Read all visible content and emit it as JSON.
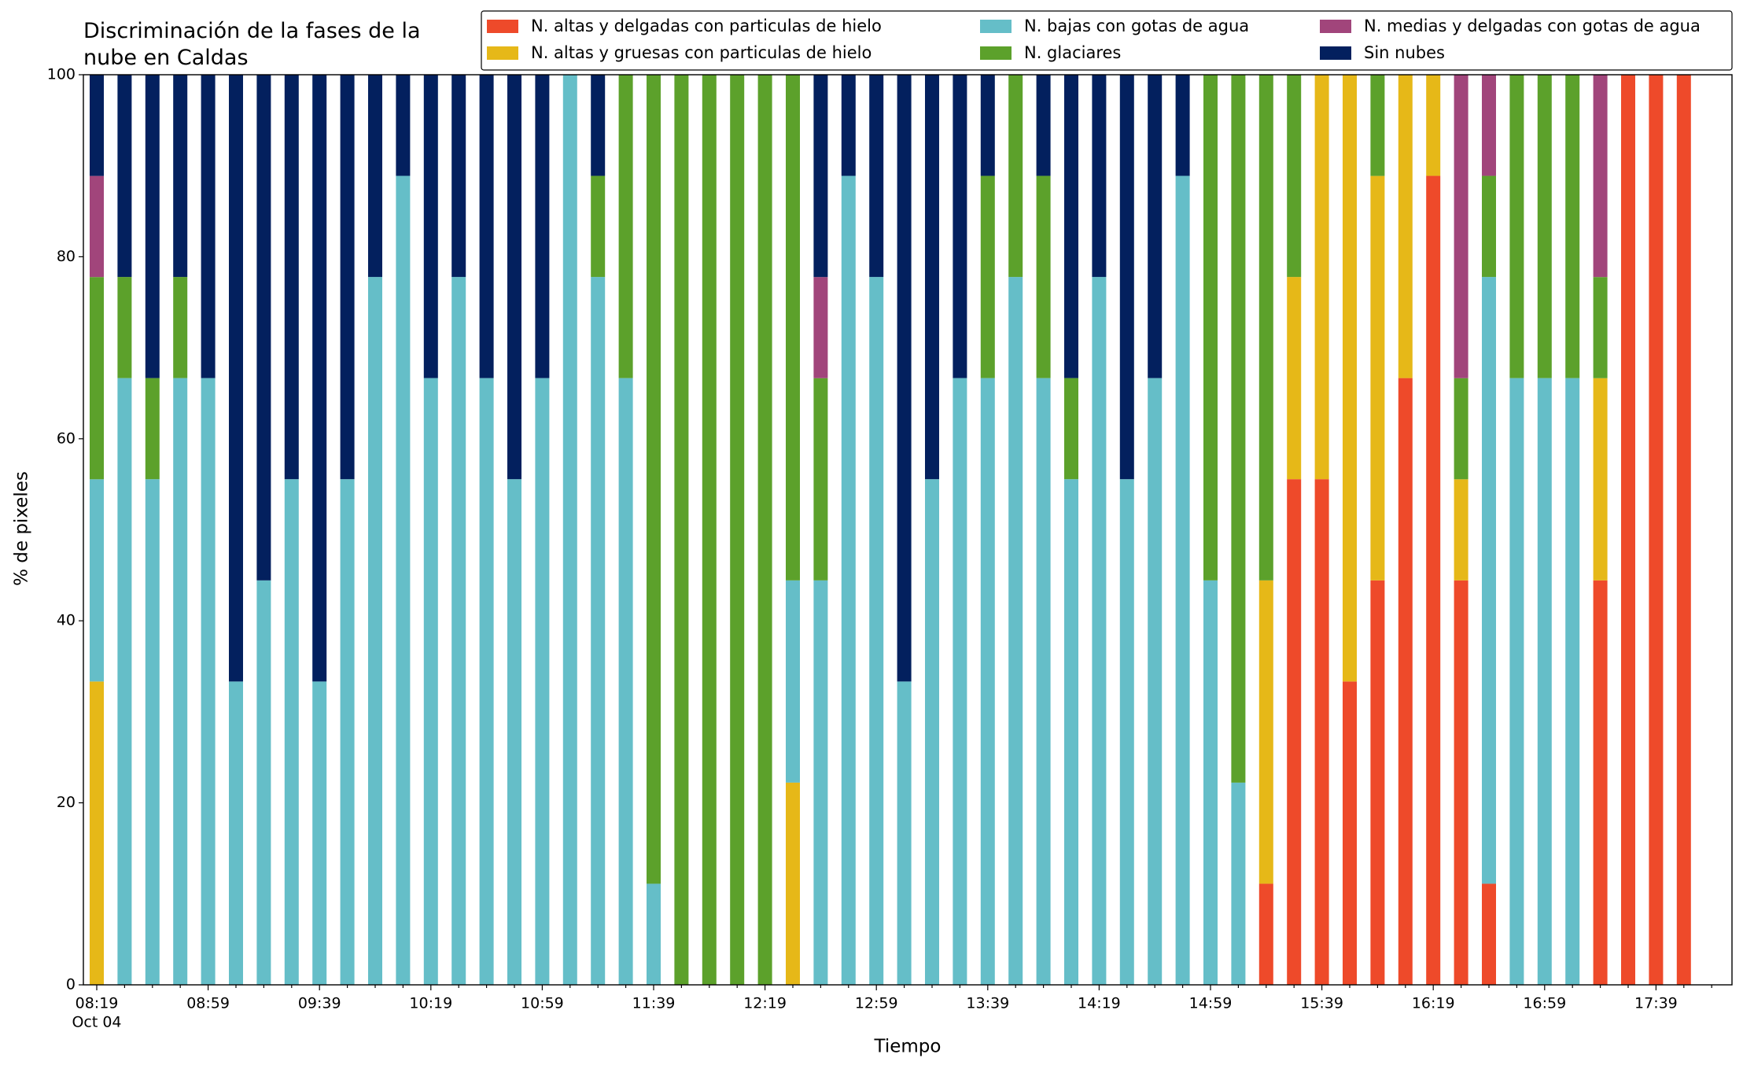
{
  "chart_data": {
    "type": "stacked_bar",
    "title": "Discriminación de la fases de la\nnube en Caldas",
    "xlabel": "Tiempo",
    "ylabel": "% de pixeles",
    "x_sublabel": "Oct 04",
    "categories": [
      "08:19",
      null,
      null,
      null,
      "08:59",
      null,
      null,
      null,
      "09:39",
      null,
      null,
      null,
      "10:19",
      null,
      null,
      null,
      "10:59",
      null,
      null,
      null,
      "11:39",
      null,
      null,
      null,
      "12:19",
      null,
      null,
      null,
      "12:59",
      null,
      null,
      null,
      "13:39",
      null,
      null,
      null,
      "14:19",
      null,
      null,
      null,
      "14:59",
      null,
      null,
      null,
      "15:39",
      null,
      null,
      null,
      "16:19",
      null,
      null,
      null,
      "16:59",
      null,
      null,
      null,
      "17:39",
      null
    ],
    "ylim": [
      0,
      100
    ],
    "yticks": [
      0,
      20,
      40,
      60,
      80,
      100
    ],
    "grid": false,
    "legend": "upper right",
    "series": [
      {
        "name": "N. altas y delgadas con particulas de hielo",
        "color": "#ee4a2a",
        "values": [
          0,
          0,
          0,
          0,
          0,
          0,
          0,
          0,
          0,
          0,
          0,
          0,
          0,
          0,
          0,
          0,
          0,
          0,
          0,
          0,
          0,
          0,
          0,
          0,
          0,
          0,
          0,
          0,
          0,
          0,
          0,
          0,
          0,
          0,
          0,
          0,
          0,
          0,
          0,
          0,
          0,
          0,
          11.11,
          55.56,
          55.56,
          33.33,
          44.44,
          66.67,
          88.89,
          44.44,
          11.11,
          0,
          0,
          0,
          44.44,
          100,
          100,
          100
        ]
      },
      {
        "name": "N. altas y gruesas con particulas de hielo",
        "color": "#e6b818",
        "values": [
          33.33,
          0,
          0,
          0,
          0,
          0,
          0,
          0,
          0,
          0,
          0,
          0,
          0,
          0,
          0,
          0,
          0,
          0,
          0,
          0,
          0,
          0,
          0,
          0,
          0,
          22.22,
          0,
          0,
          0,
          0,
          0,
          0,
          0,
          0,
          0,
          0,
          0,
          0,
          0,
          0,
          0,
          0,
          33.33,
          22.22,
          44.44,
          66.67,
          44.44,
          33.33,
          11.11,
          11.11,
          0,
          0,
          0,
          0,
          22.22,
          0,
          0,
          0
        ]
      },
      {
        "name": "N. bajas con gotas de agua",
        "color": "#65bec8",
        "values": [
          22.22,
          66.67,
          55.56,
          66.67,
          66.67,
          33.33,
          44.44,
          55.56,
          33.33,
          55.56,
          77.78,
          88.89,
          66.67,
          77.78,
          66.67,
          55.56,
          66.67,
          100,
          77.78,
          66.67,
          11.11,
          0,
          0,
          0,
          0,
          22.22,
          44.44,
          88.89,
          77.78,
          33.33,
          55.56,
          66.67,
          66.67,
          77.78,
          66.67,
          55.56,
          77.78,
          55.56,
          66.67,
          88.89,
          44.44,
          22.22,
          0,
          0,
          0,
          0,
          0,
          0,
          0,
          0,
          66.67,
          66.67,
          66.67,
          66.67,
          0,
          0,
          0,
          0
        ]
      },
      {
        "name": "N. glaciares",
        "color": "#5ca12b",
        "values": [
          22.22,
          11.11,
          11.11,
          11.11,
          0,
          0,
          0,
          0,
          0,
          0,
          0,
          0,
          0,
          0,
          0,
          0,
          0,
          0,
          11.11,
          33.33,
          88.89,
          100,
          100,
          100,
          100,
          55.56,
          22.22,
          0,
          0,
          0,
          0,
          0,
          22.22,
          22.22,
          22.22,
          11.11,
          0,
          0,
          0,
          0,
          55.56,
          77.78,
          55.56,
          22.22,
          0,
          0,
          11.11,
          0,
          0,
          11.11,
          11.11,
          33.33,
          33.33,
          33.33,
          11.11,
          0,
          0,
          0
        ]
      },
      {
        "name": "N. medias y delgadas con gotas de agua",
        "color": "#a1457b",
        "values": [
          11.11,
          0,
          0,
          0,
          0,
          0,
          0,
          0,
          0,
          0,
          0,
          0,
          0,
          0,
          0,
          0,
          0,
          0,
          0,
          0,
          0,
          0,
          0,
          0,
          0,
          0,
          11.11,
          0,
          0,
          0,
          0,
          0,
          0,
          0,
          0,
          0,
          0,
          0,
          0,
          0,
          0,
          0,
          0,
          0,
          0,
          0,
          0,
          0,
          0,
          33.33,
          11.11,
          0,
          0,
          0,
          22.22,
          0,
          0,
          0
        ]
      },
      {
        "name": "Sin nubes",
        "color": "#03205e",
        "values": [
          11.11,
          22.22,
          33.33,
          22.22,
          33.33,
          66.67,
          55.56,
          44.44,
          66.67,
          44.44,
          22.22,
          11.11,
          33.33,
          22.22,
          33.33,
          44.44,
          33.33,
          0,
          11.11,
          0,
          0,
          0,
          0,
          0,
          0,
          0,
          22.22,
          11.11,
          22.22,
          66.67,
          44.44,
          33.33,
          11.11,
          0,
          11.11,
          33.33,
          22.22,
          44.44,
          33.33,
          11.11,
          0,
          0,
          0,
          0,
          0,
          0,
          0,
          0,
          0,
          0,
          0,
          0,
          0,
          0,
          0,
          0,
          0,
          0
        ]
      }
    ]
  }
}
